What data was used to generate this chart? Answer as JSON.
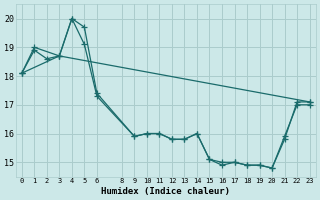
{
  "xlabel": "Humidex (Indice chaleur)",
  "background_color": "#cce8e8",
  "grid_color": "#aacccc",
  "line_color": "#1a6b6b",
  "xlim": [
    -0.5,
    23.5
  ],
  "ylim": [
    14.5,
    20.5
  ],
  "yticks": [
    15,
    16,
    17,
    18,
    19,
    20
  ],
  "xticks": [
    0,
    1,
    2,
    3,
    4,
    5,
    6,
    8,
    9,
    10,
    11,
    12,
    13,
    14,
    15,
    16,
    17,
    18,
    19,
    20,
    21,
    22,
    23
  ],
  "line1_x": [
    0,
    1,
    2,
    3,
    4,
    5,
    6,
    9,
    10,
    11,
    12,
    13,
    14,
    15,
    16,
    17,
    18,
    19,
    20,
    21,
    22,
    23
  ],
  "line1_y": [
    18.1,
    18.9,
    18.6,
    18.7,
    20.0,
    19.1,
    17.3,
    15.9,
    16.0,
    16.0,
    15.8,
    15.8,
    16.0,
    15.1,
    14.9,
    15.0,
    14.9,
    14.9,
    14.8,
    15.8,
    17.1,
    17.1
  ],
  "line2_x": [
    0,
    1,
    3,
    4,
    5,
    6,
    9,
    10,
    11,
    12,
    13,
    14,
    15,
    16,
    17,
    18,
    19,
    20,
    21,
    22,
    23
  ],
  "line2_y": [
    18.1,
    19.0,
    18.7,
    20.0,
    19.7,
    17.4,
    15.9,
    16.0,
    16.0,
    15.8,
    15.8,
    16.0,
    15.1,
    15.0,
    15.0,
    14.9,
    14.9,
    14.8,
    15.9,
    17.0,
    17.0
  ],
  "line3_x": [
    0,
    3,
    23
  ],
  "line3_y": [
    18.1,
    18.7,
    17.1
  ],
  "marker_size": 4,
  "line_width": 0.9
}
